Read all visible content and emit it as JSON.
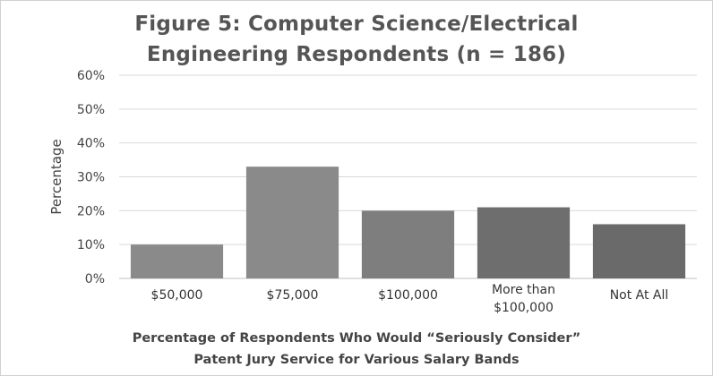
{
  "chart_data": {
    "type": "bar",
    "title": [
      "Figure 5: Computer Science/Electrical",
      "Engineering Respondents (n = 186)"
    ],
    "xlabel": [
      "Percentage of Respondents Who Would “Seriously Consider”",
      "Patent Jury Service for Various Salary Bands"
    ],
    "ylabel": "Percentage",
    "categories": [
      [
        "$50,000"
      ],
      [
        "$75,000"
      ],
      [
        "$100,000"
      ],
      [
        "More than",
        "$100,000"
      ],
      [
        "Not At All"
      ]
    ],
    "values": [
      10,
      33,
      20,
      21,
      16
    ],
    "ylim": [
      0,
      60
    ],
    "yticks": [
      "0%",
      "10%",
      "20%",
      "30%",
      "40%",
      "50%",
      "60%"
    ],
    "grid": true,
    "legend": "none",
    "colors": [
      "#8a8a8a",
      "#8a8a8a",
      "#7e7e7e",
      "#6e6e6e",
      "#6a6a6a"
    ]
  }
}
